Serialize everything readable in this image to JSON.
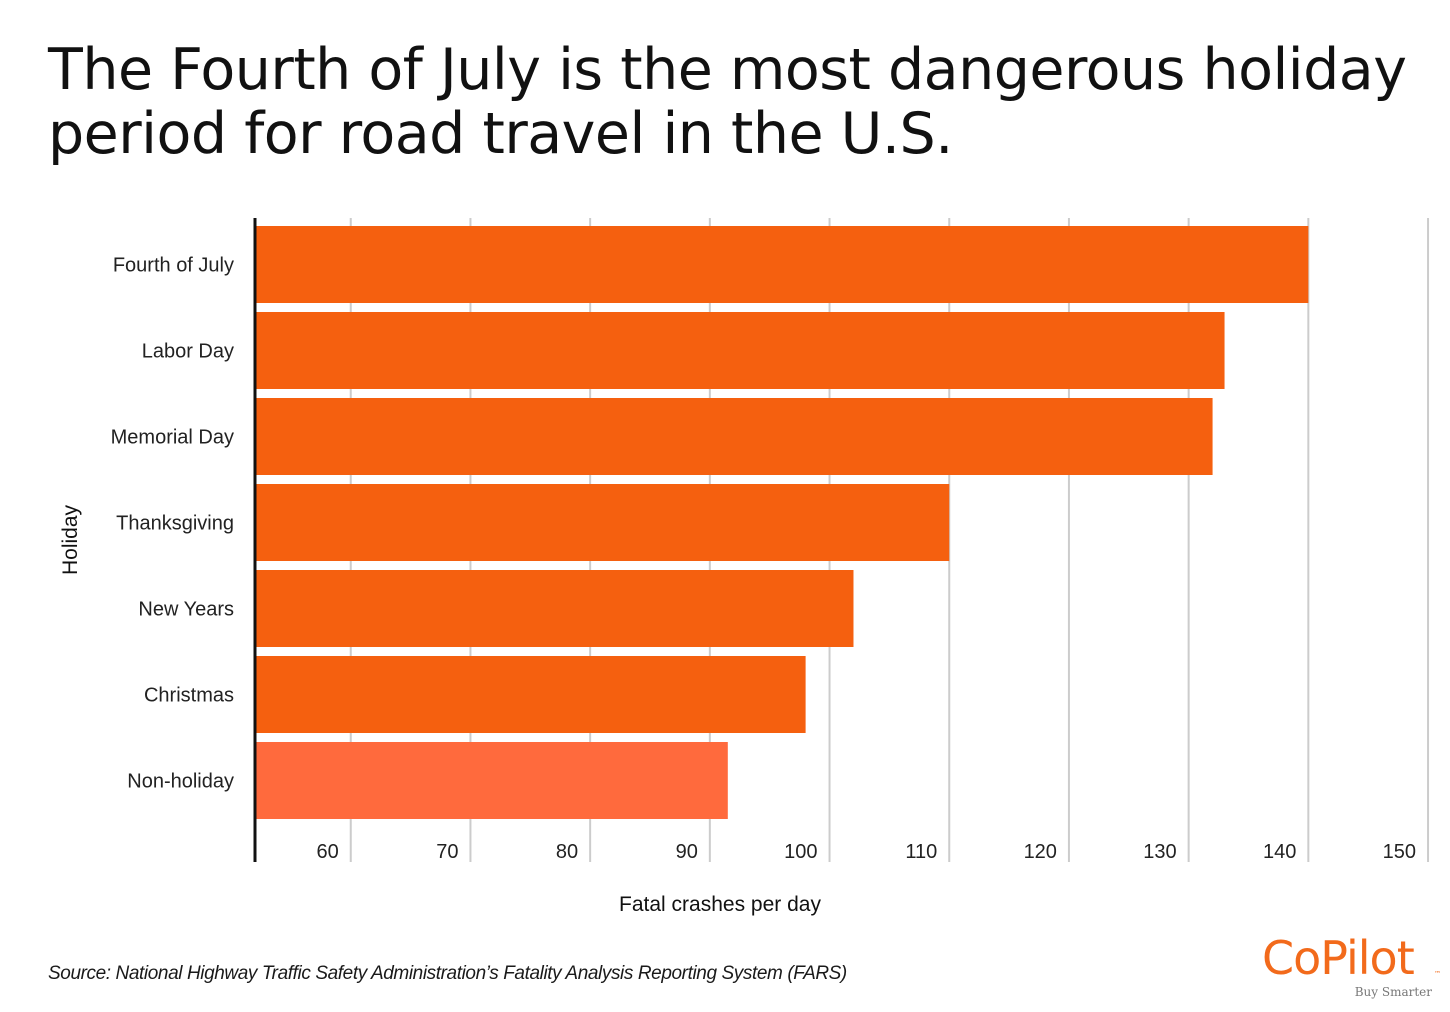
{
  "title": "The Fourth of July is the most dangerous holiday period for road travel in the U.S.",
  "source": "Source: National Highway Traffic Safety Administration’s Fatality Analysis Reporting System (FARS)",
  "logo": {
    "wordmark": "CoPilot",
    "trademark": "™",
    "tagline": "Buy Smarter"
  },
  "colors": {
    "bar": "#f5600f",
    "bar_highlight": "#ff6a3d",
    "grid": "#cccccc",
    "axis": "#111111",
    "brand": "#f26a1b"
  },
  "chart_data": {
    "type": "bar",
    "orientation": "horizontal",
    "categories": [
      "Fourth of July",
      "Labor Day",
      "Memorial Day",
      "Thanksgiving",
      "New Years",
      "Christmas",
      "Non-holiday"
    ],
    "values": [
      140,
      133,
      132,
      110,
      102,
      98,
      91.5
    ],
    "xlabel": "Fatal crashes per day",
    "ylabel": "Holiday",
    "xlim": [
      52,
      151
    ],
    "xticks": [
      60,
      70,
      80,
      90,
      100,
      110,
      120,
      130,
      140,
      150
    ],
    "grid": true,
    "legend": "none"
  }
}
